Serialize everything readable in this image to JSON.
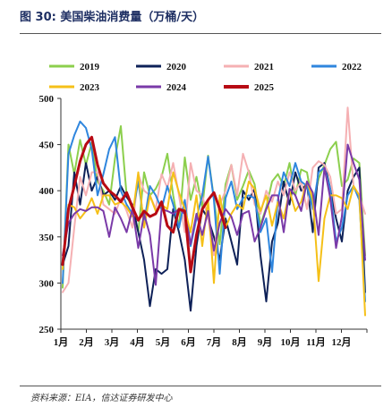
{
  "title": "图 30:  美国柴油消费量（万桶/天）",
  "source": "资料来源：EIA，信达证券研发中心",
  "chart_data": {
    "type": "line",
    "ylim": [
      250,
      500
    ],
    "yticks": [
      "250",
      "300",
      "350",
      "400",
      "450",
      "500"
    ],
    "ytick_values": [
      250,
      300,
      350,
      400,
      450,
      500
    ],
    "xticks": [
      "1月",
      "2月",
      "3月",
      "4月",
      "5月",
      "6月",
      "7月",
      "8月",
      "9月",
      "10月",
      "11月",
      "12月"
    ],
    "x_weeks": 53,
    "legend_position": "top",
    "series": [
      {
        "name": "2019",
        "color": "#8ccf4d",
        "width": 2,
        "values": [
          295,
          450,
          418,
          455,
          428,
          452,
          410,
          400,
          385,
          435,
          470,
          395,
          380,
          355,
          420,
          395,
          402,
          415,
          440,
          395,
          360,
          436,
          390,
          415,
          382,
          438,
          392,
          342,
          407,
          428,
          390,
          405,
          422,
          407,
          363,
          382,
          410,
          418,
          405,
          430,
          395,
          423,
          420,
          385,
          413,
          428,
          445,
          453,
          405,
          412,
          435,
          430,
          330
        ]
      },
      {
        "name": "2020",
        "color": "#0e2158",
        "width": 2,
        "values": [
          320,
          340,
          420,
          385,
          430,
          400,
          415,
          395,
          400,
          390,
          405,
          393,
          385,
          355,
          325,
          275,
          315,
          310,
          315,
          380,
          355,
          325,
          270,
          340,
          380,
          370,
          350,
          325,
          370,
          345,
          320,
          400,
          390,
          402,
          330,
          280,
          345,
          365,
          410,
          385,
          420,
          400,
          408,
          355,
          425,
          430,
          402,
          370,
          345,
          400,
          415,
          425,
          290
        ]
      },
      {
        "name": "2021",
        "color": "#f5b0b3",
        "width": 2,
        "values": [
          290,
          300,
          360,
          415,
          395,
          420,
          420,
          385,
          380,
          375,
          392,
          378,
          360,
          418,
          400,
          395,
          380,
          418,
          403,
          430,
          395,
          355,
          430,
          400,
          395,
          370,
          330,
          385,
          400,
          428,
          395,
          440,
          420,
          385,
          375,
          400,
          388,
          410,
          395,
          420,
          400,
          410,
          380,
          425,
          432,
          428,
          415,
          375,
          380,
          490,
          405,
          395,
          375
        ]
      },
      {
        "name": "2022",
        "color": "#2f86de",
        "width": 2,
        "values": [
          300,
          440,
          460,
          475,
          468,
          445,
          395,
          418,
          445,
          458,
          400,
          385,
          375,
          410,
          365,
          405,
          395,
          380,
          405,
          385,
          360,
          390,
          340,
          370,
          395,
          437,
          390,
          310,
          392,
          410,
          380,
          392,
          395,
          392,
          355,
          370,
          312,
          390,
          420,
          405,
          430,
          410,
          405,
          380,
          420,
          425,
          402,
          345,
          360,
          395,
          405,
          390,
          280
        ]
      },
      {
        "name": "2023",
        "color": "#f5c018",
        "width": 2,
        "values": [
          315,
          385,
          382,
          370,
          378,
          392,
          375,
          395,
          395,
          385,
          388,
          382,
          372,
          420,
          360,
          395,
          378,
          385,
          380,
          420,
          398,
          380,
          355,
          395,
          340,
          390,
          300,
          395,
          360,
          375,
          385,
          380,
          410,
          402,
          378,
          395,
          362,
          388,
          370,
          400,
          378,
          388,
          410,
          392,
          302,
          370,
          395,
          395,
          392,
          380,
          405,
          395,
          265
        ]
      },
      {
        "name": "2024",
        "color": "#7a3aa8",
        "width": 2,
        "values": [
          330,
          365,
          375,
          380,
          378,
          382,
          382,
          378,
          350,
          382,
          370,
          355,
          380,
          338,
          375,
          352,
          298,
          380,
          378,
          375,
          380,
          375,
          342,
          375,
          352,
          378,
          335,
          365,
          380,
          372,
          352,
          375,
          378,
          345,
          360,
          380,
          395,
          395,
          355,
          402,
          395,
          378,
          410,
          398,
          352,
          425,
          392,
          338,
          372,
          450,
          430,
          412,
          325
        ]
      },
      {
        "name": "2025",
        "color": "#b70a14",
        "width": 3,
        "values": [
          320,
          380,
          405,
          432,
          450,
          458,
          428,
          408,
          400,
          395,
          388,
          398,
          382,
          368,
          378,
          372,
          375,
          388,
          362,
          355,
          380,
          378,
          312,
          352,
          380,
          390,
          398,
          380,
          360
        ]
      }
    ]
  }
}
